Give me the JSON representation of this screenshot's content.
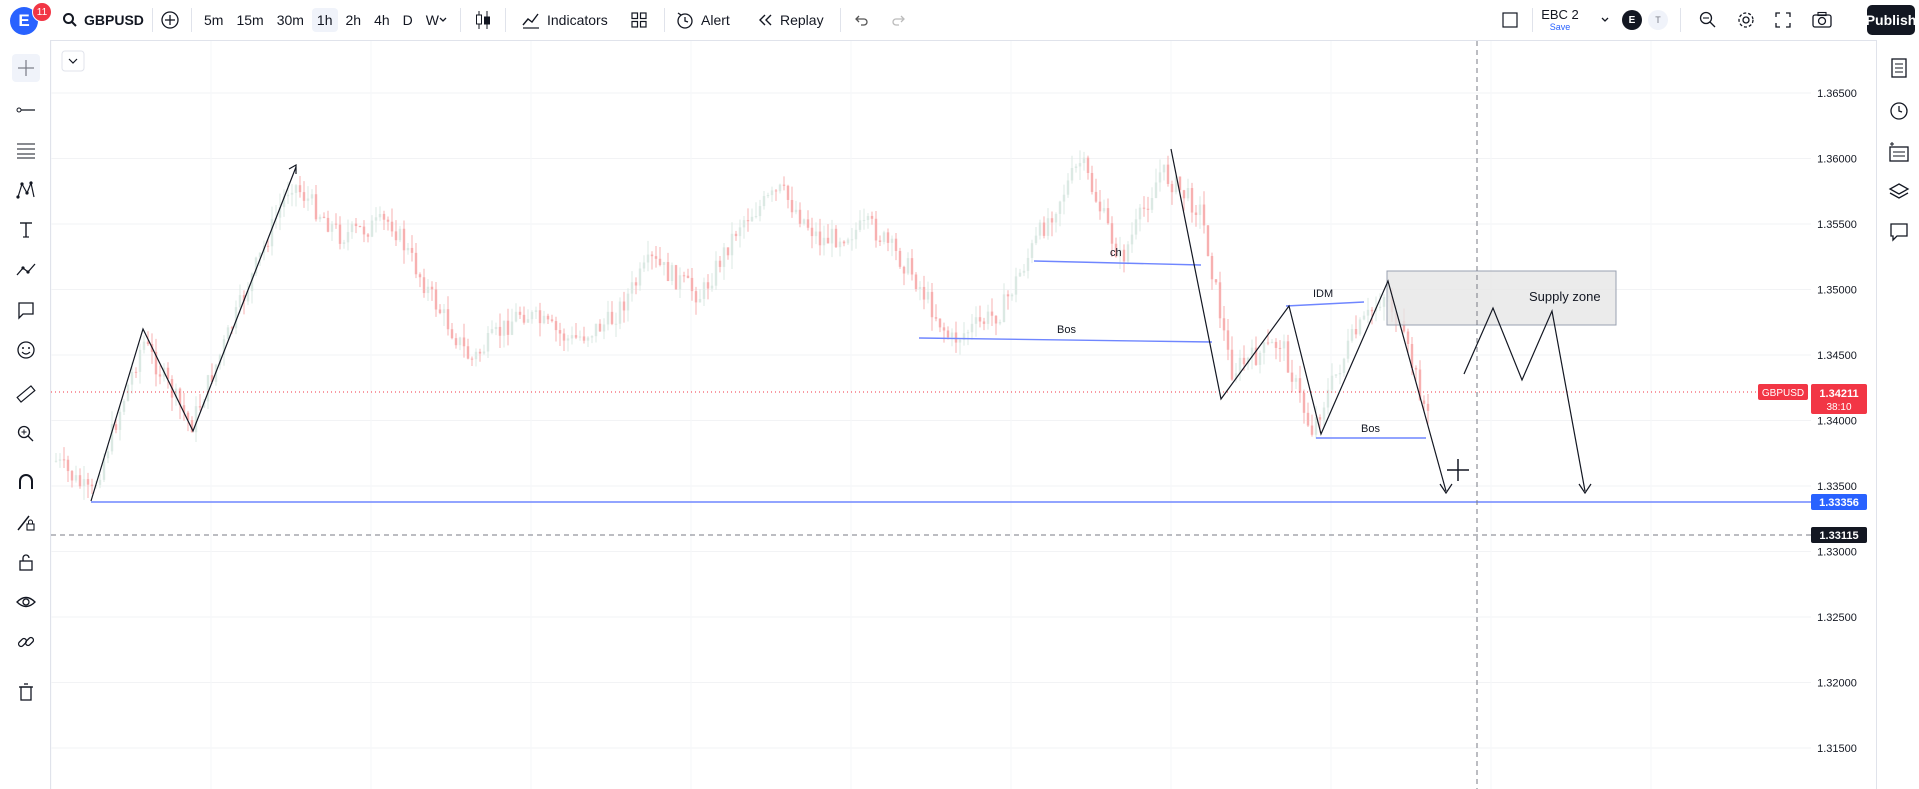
{
  "header": {
    "avatar_letter": "E",
    "notification_count": "11",
    "symbol": "GBPUSD",
    "timeframes": [
      {
        "label": "5m",
        "active": false
      },
      {
        "label": "15m",
        "active": false
      },
      {
        "label": "30m",
        "active": false
      },
      {
        "label": "1h",
        "active": true
      },
      {
        "label": "2h",
        "active": false
      },
      {
        "label": "4h",
        "active": false
      },
      {
        "label": "D",
        "active": false
      },
      {
        "label": "W",
        "active": false
      }
    ],
    "indicators_label": "Indicators",
    "alert_label": "Alert",
    "replay_label": "Replay",
    "layout_name": "EBC 2",
    "layout_status": "Save",
    "user_badge_letter": "E",
    "user_badge_t": "T",
    "publish_label": "Publish"
  },
  "price_axis": {
    "ticks": [
      "1.36500",
      "1.36000",
      "1.35500",
      "1.35000",
      "1.34500",
      "1.34000",
      "1.33500",
      "1.33000",
      "1.32500",
      "1.32000",
      "1.31500"
    ]
  },
  "price_labels": {
    "symbol_tag": "GBPUSD",
    "current_price": "1.34211",
    "countdown": "38:10",
    "blue_line_price": "1.33356",
    "crosshair_price": "1.33115"
  },
  "annotations": {
    "supply_zone": "Supply zone",
    "ch": "ch",
    "bos_1": "Bos",
    "idm": "IDM",
    "bos_2": "Bos"
  },
  "colors": {
    "accent": "#2962ff",
    "bull_candle": "#dbe9e3",
    "bear_candle": "#f7b0b0",
    "price_red": "#f23645",
    "blue_line": "#6f86ff",
    "dark": "#131722"
  },
  "icons": {
    "left_tools": [
      "crosshair-icon",
      "trend-line-icon",
      "horizontal-lines-icon",
      "pattern-icon",
      "text-icon",
      "path-icon",
      "comment-icon",
      "emoji-icon",
      "ruler-icon",
      "zoom-icon",
      "magnet-icon",
      "lock-drawing-icon",
      "lock-icon",
      "eye-icon",
      "link-icon",
      "trash-icon"
    ],
    "right_tools": [
      "watchlist-icon",
      "alarm-icon",
      "data-window-icon",
      "layers-icon",
      "chat-icon"
    ]
  }
}
